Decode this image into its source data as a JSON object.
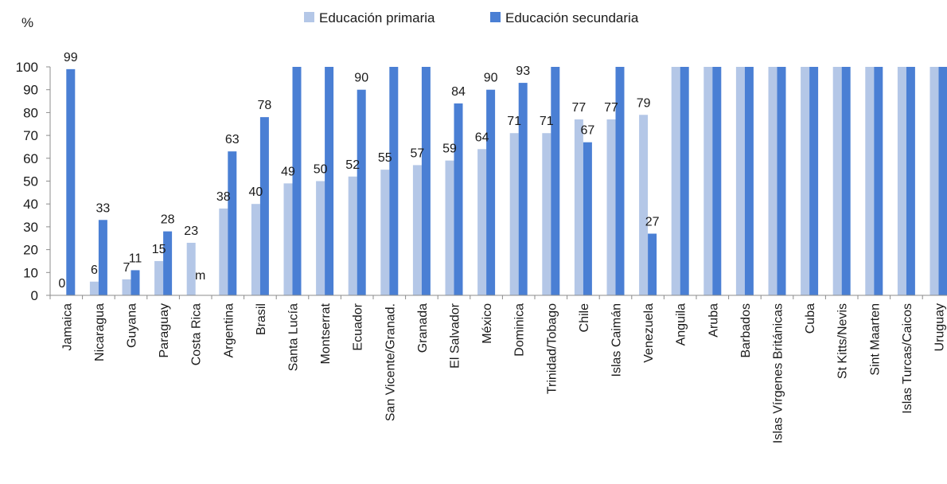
{
  "chart_data": {
    "type": "bar",
    "ylabel": "%",
    "ylim": [
      0,
      100
    ],
    "yticks": [
      0,
      10,
      20,
      30,
      40,
      50,
      60,
      70,
      80,
      90,
      100
    ],
    "grid": false,
    "legend_position": "top-center",
    "categories": [
      "Jamaica",
      "Nicaragua",
      "Guyana",
      "Paraguay",
      "Costa Rica",
      "Argentina",
      "Brasil",
      "Santa Lucía",
      "Montserrat",
      "Ecuador",
      "San Vicente/Granad.",
      "Granada",
      "El Salvador",
      "México",
      "Dominica",
      "Trinidad/Tobago",
      "Chile",
      "Islas Caimán",
      "Venezuela",
      "Anguila",
      "Aruba",
      "Barbados",
      "Islas Vírgenes Británicas",
      "Cuba",
      "St Kitts/Nevis",
      "Sint Maarten",
      "Islas Turcas/Caicos",
      "Uruguay"
    ],
    "series": [
      {
        "name": "Educación primaria",
        "color": "#b4c7e7",
        "values": [
          0,
          6,
          7,
          15,
          23,
          38,
          40,
          49,
          50,
          52,
          55,
          57,
          59,
          64,
          71,
          71,
          77,
          77,
          79,
          100,
          100,
          100,
          100,
          100,
          100,
          100,
          100,
          100
        ],
        "labels": [
          "0",
          "6",
          "7",
          "15",
          "23",
          "38",
          "40",
          "49",
          "50",
          "52",
          "55",
          "57",
          "59",
          "64",
          "71",
          "71",
          "77",
          "77",
          "79",
          null,
          null,
          null,
          null,
          null,
          null,
          null,
          null,
          null
        ]
      },
      {
        "name": "Educación secundaria",
        "color": "#4a7fd4",
        "values": [
          99,
          33,
          11,
          28,
          null,
          63,
          78,
          100,
          100,
          90,
          100,
          100,
          84,
          90,
          93,
          100,
          67,
          100,
          27,
          100,
          100,
          100,
          100,
          100,
          100,
          100,
          100,
          100
        ],
        "labels": [
          "99",
          "33",
          "11",
          "28",
          "m",
          "63",
          "78",
          null,
          null,
          "90",
          null,
          null,
          "84",
          "90",
          "93",
          null,
          "67",
          null,
          "27",
          null,
          null,
          null,
          null,
          null,
          null,
          null,
          null,
          null
        ]
      }
    ]
  }
}
